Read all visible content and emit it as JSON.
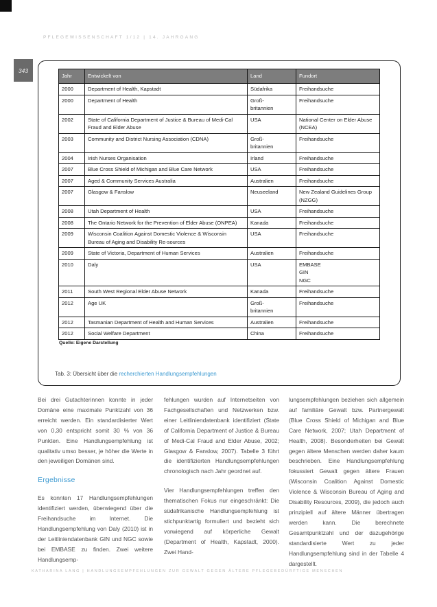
{
  "header": {
    "journal_line": "Pflegewissenschaft 1/12 | 14. Jahrgang",
    "page_number": "343"
  },
  "table": {
    "columns": [
      "Jahr",
      "Entwickelt von",
      "Land",
      "Fundort"
    ],
    "rows": [
      {
        "jahr": "2000",
        "entwickelt_von": "Department of Health, Kapstadt",
        "land": "Südafrika",
        "fundort": "Freihandsuche"
      },
      {
        "jahr": "2000",
        "entwickelt_von": "Department of Health",
        "land": "Groß-\nbritannien",
        "fundort": "Freihandsuche"
      },
      {
        "jahr": "2002",
        "entwickelt_von": "State of California Department of Justice & Bureau of Medi-Cal Fraud and Elder Abuse",
        "land": "USA",
        "fundort": "National Center on Elder Abuse (NCEA)"
      },
      {
        "jahr": "2003",
        "entwickelt_von": "Community and District Nursing Association (CDNA)",
        "land": "Groß-\nbritannien",
        "fundort": "Freihandsuche"
      },
      {
        "jahr": "2004",
        "entwickelt_von": "Irish Nurses Organisation",
        "land": "Irland",
        "fundort": "Freihandsuche"
      },
      {
        "jahr": "2007",
        "entwickelt_von": "Blue Cross Shield of Michigan and Blue Care Network",
        "land": "USA",
        "fundort": "Freihandsuche"
      },
      {
        "jahr": "2007",
        "entwickelt_von": "Aged & Community Services Australia",
        "land": "Australien",
        "fundort": "Freihandsuche"
      },
      {
        "jahr": "2007",
        "entwickelt_von": "Glasgow & Fanslow",
        "land": "Neuseeland",
        "fundort": "New Zealand Guidelines Group (NZGG)"
      },
      {
        "jahr": "2008",
        "entwickelt_von": "Utah Department of Health",
        "land": "USA",
        "fundort": "Freihandsuche"
      },
      {
        "jahr": "2008",
        "entwickelt_von": "The Ontario Network for the Prevention of Elder Abuse (ONPEA)",
        "land": "Kanada",
        "fundort": "Freihandsuche"
      },
      {
        "jahr": "2009",
        "entwickelt_von": "Wisconsin Coalition Against Domestic Violence & Wisconsin Bureau of Aging and Disability Re-sources",
        "land": "USA",
        "fundort": "Freihandsuche"
      },
      {
        "jahr": "2009",
        "entwickelt_von": "State of Victoria, Department of Human Services",
        "land": "Australien",
        "fundort": "Freihandsuche"
      },
      {
        "jahr": "2010",
        "entwickelt_von": "Daly",
        "land": "USA",
        "fundort": "EMBASE\nGIN\nNGC"
      },
      {
        "jahr": "2011",
        "entwickelt_von": "South West Regional Elder Abuse Network",
        "land": "Kanada",
        "fundort": "Freihandsuche"
      },
      {
        "jahr": "2012",
        "entwickelt_von": "Age UK",
        "land": "Groß-\nbritannien",
        "fundort": "Freihandsuche"
      },
      {
        "jahr": "2012",
        "entwickelt_von": "Tasmanian Department of Health and Human Services",
        "land": "Australien",
        "fundort": "Freihandsuche"
      },
      {
        "jahr": "2012",
        "entwickelt_von": "Social Welfare Department",
        "land": "China",
        "fundort": "Freihandsuche"
      }
    ],
    "source_note": "Quelle: Eigene Darstellung",
    "caption_prefix": "Tab. 3: Übersicht über die ",
    "caption_link": "recherchierten Handlungsempfehlungen"
  },
  "body": {
    "col1_para1": "Bei drei Gutachterinnen konnte in jeder Domäne eine maximale Punktzahl von 36 erreicht werden. Ein standardisierter Wert von 0,30 entspricht somit 30 % von 36 Punkten. Eine Handlungsempfehlung ist qualitativ umso besser, je höher die Werte in den jeweiligen Domänen sind.",
    "col1_heading": "Ergebnisse",
    "col1_para2": "Es konnten 17 Handlungsempfehlungen identifiziert werden, überwiegend über die Freihandsuche im Internet. Die Handlungsempfehlung von Daly (2010) ist in der Leitliniendatenbank GIN und NGC sowie bei EMBASE zu finden. Zwei weitere Handlungsemp-",
    "col2_para1": "fehlungen wurden auf Internetseiten von Fachgesellschaften und Netzwerken bzw. einer Leitliniendatenbank identifiziert (State of California Department of Justice & Bureau of Medi-Cal Fraud and Elder Abuse, 2002; Glasgow & Fanslow, 2007). Tabelle 3 führt die identifizierten Handlungsempfehlungen chronologisch nach Jahr geordnet auf.",
    "col2_para2": "Vier Handlungsempfehlungen treffen den thematischen Fokus nur eingeschränkt: Die südafrikanische Handlungsempfehlung ist stichpunktartig formuliert und bezieht sich vorwiegend auf körperliche Gewalt (Department of Health, Kapstadt, 2000). Zwei Hand-",
    "col3_para1": "lungsempfehlungen beziehen sich allgemein auf familiäre Gewalt bzw. Partnergewalt (Blue Cross Shield of Michigan and Blue Care Network, 2007; Utah Department of Health, 2008). Besonderheiten bei Gewalt gegen ältere Menschen werden daher kaum beschrieben. Eine Handlungsempfehlung fokussiert Gewalt gegen ältere Frauen (Wisconsin Coalition Against Domestic Violence & Wisconsin Bureau of Aging and Disability Resources, 2009), die jedoch auch prinzipiell auf ältere Männer übertragen werden kann. Die berechnete Gesamtpunktzahl und der dazugehörige standardisierte Wert zu jeder Handlungsempfehlung sind in der Tabelle 4 dargestellt."
  },
  "footer": {
    "running_line": "Katharina Lang | Handlungsempfehlungen zur Gewalt gegen ältere pflegebedürftige Menschen"
  },
  "colors": {
    "accent_blue": "#3d9ad1",
    "table_header_bg": "#7d7d7d",
    "badge_bg": "#6a6a6a"
  }
}
